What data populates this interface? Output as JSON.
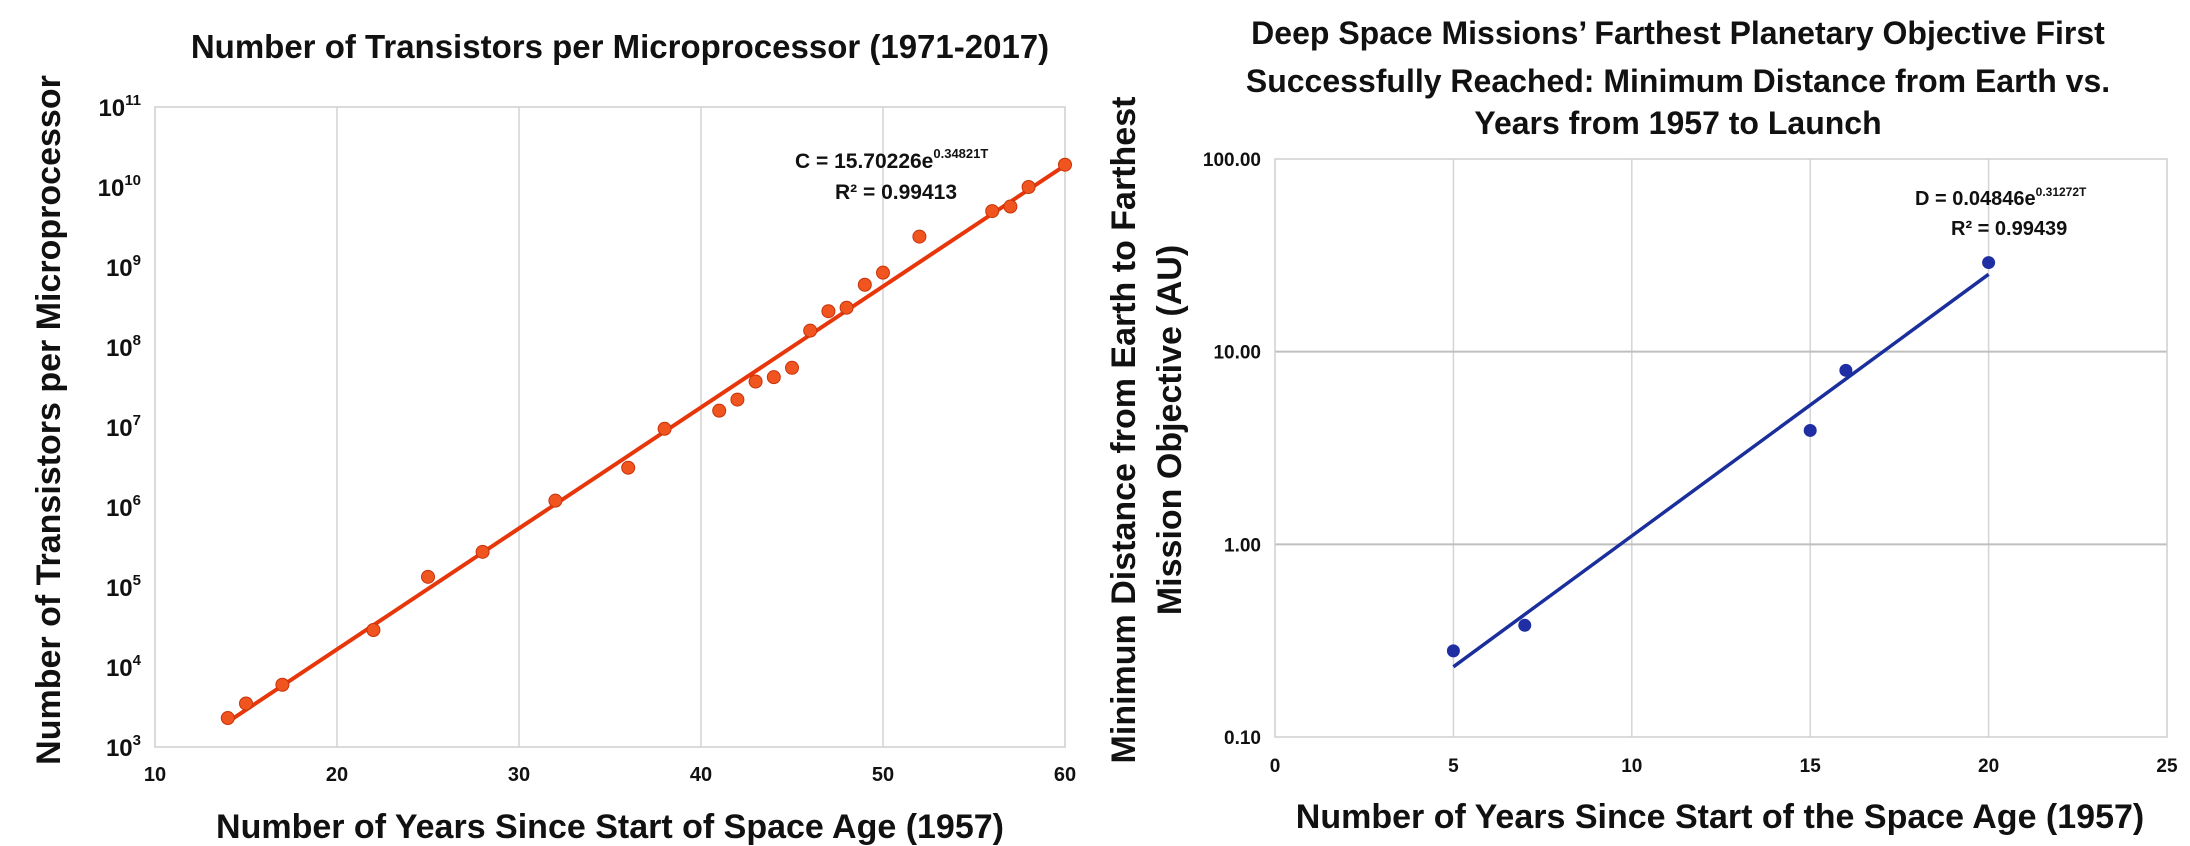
{
  "chart_data": [
    {
      "type": "scatter",
      "scale": "log-y",
      "title": "Number of Transistors per Microprocessor (1971-2017)",
      "xlabel": "Number of Years Since Start of Space Age (1957)",
      "ylabel": "Number of Transistors per Microprocessor",
      "xlim": [
        10,
        60
      ],
      "x_ticks": [
        10,
        20,
        30,
        40,
        50,
        60
      ],
      "y_exponent_range": [
        3,
        11
      ],
      "y_tick_base": "10",
      "y_tick_exponents": [
        "3",
        "4",
        "5",
        "6",
        "7",
        "8",
        "9",
        "10",
        "11"
      ],
      "grid": "vertical",
      "point_color": "#f1551f",
      "line_color": "#e8360b",
      "trendline": {
        "a": 15.70226,
        "b": 0.34821,
        "x_start": 14,
        "x_end": 60
      },
      "annotation": {
        "prefix": "C = 15.70226e",
        "exponent": "0.34821T",
        "r2": "R² = 0.99413"
      },
      "points": [
        {
          "x": 14,
          "y": 2300
        },
        {
          "x": 15,
          "y": 3500
        },
        {
          "x": 17,
          "y": 6000
        },
        {
          "x": 22,
          "y": 29000
        },
        {
          "x": 25,
          "y": 134000
        },
        {
          "x": 28,
          "y": 275000
        },
        {
          "x": 32,
          "y": 1200000
        },
        {
          "x": 36,
          "y": 3100000
        },
        {
          "x": 38,
          "y": 9500000
        },
        {
          "x": 41,
          "y": 16000000
        },
        {
          "x": 42,
          "y": 22000000
        },
        {
          "x": 43,
          "y": 37000000
        },
        {
          "x": 44,
          "y": 42000000
        },
        {
          "x": 45,
          "y": 55000000
        },
        {
          "x": 46,
          "y": 160000000
        },
        {
          "x": 47,
          "y": 280000000
        },
        {
          "x": 48,
          "y": 310000000
        },
        {
          "x": 49,
          "y": 600000000
        },
        {
          "x": 50,
          "y": 850000000
        },
        {
          "x": 52,
          "y": 2400000000
        },
        {
          "x": 56,
          "y": 5000000000
        },
        {
          "x": 57,
          "y": 5700000000
        },
        {
          "x": 58,
          "y": 10000000000
        },
        {
          "x": 60,
          "y": 19000000000
        }
      ]
    },
    {
      "type": "scatter",
      "scale": "log-y",
      "title_lines": [
        "Deep Space Missions’ Farthest Planetary Objective First",
        "Successfully Reached: Minimum Distance from Earth vs.",
        "Years from 1957 to Launch"
      ],
      "xlabel": "Number of Years Since Start of the Space Age (1957)",
      "ylabel_lines": [
        "Minimum Distance from Earth to Farthest",
        "Mission Objective (AU)"
      ],
      "xlim": [
        0,
        25
      ],
      "x_ticks": [
        0,
        5,
        10,
        15,
        20,
        25
      ],
      "ylim": [
        0.1,
        100
      ],
      "y_ticks": [
        0.1,
        1,
        10,
        100
      ],
      "y_tick_labels": [
        "0.10",
        "1.00",
        "10.00",
        "100.00"
      ],
      "grid": "both",
      "point_color": "#1f2fa3",
      "line_color": "#1a2f9c",
      "trendline": {
        "a": 0.04846,
        "b": 0.31272,
        "x_start": 5,
        "x_end": 20
      },
      "annotation": {
        "prefix": "D = 0.04846e",
        "exponent": "0.31272T",
        "r2": "R² = 0.99439"
      },
      "points": [
        {
          "x": 5,
          "y": 0.28
        },
        {
          "x": 7,
          "y": 0.38
        },
        {
          "x": 15,
          "y": 3.9
        },
        {
          "x": 16,
          "y": 8.0
        },
        {
          "x": 20,
          "y": 29.0
        }
      ]
    }
  ]
}
